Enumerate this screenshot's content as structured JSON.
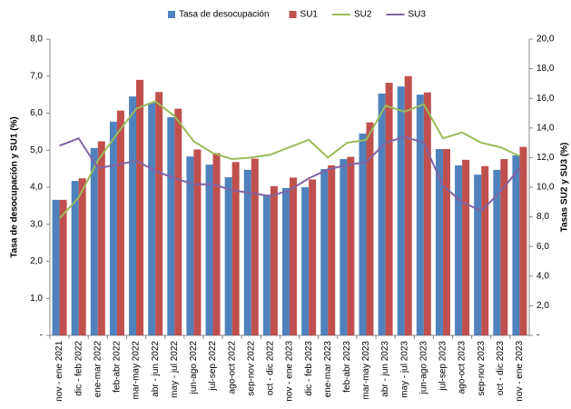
{
  "chart_data": {
    "type": "bar-line",
    "legend_position": "top",
    "ylabel": "Tasa de desocupación y SU1 (%)",
    "y2label": "Tasas SU2 y SU3 (%)",
    "categories": [
      "nov - ene 2021",
      "dic - feb 2022",
      "ene-mar 2022",
      "feb-abr 2022",
      "mar-may 2022",
      "abr - jun 2022",
      "may - jul 2022",
      "jun-ago 2022",
      "jul-sep 2022",
      "ago-oct 2022",
      "sep-nov 2022",
      "oct - dic 2022",
      "nov - ene 2023",
      "dic - feb 2023",
      "ene-mar 2023",
      "feb-abr 2023",
      "mar-may 2023",
      "abr - jun 2023",
      "may - jul 2023",
      "jun-ago 2023",
      "jul-sep 2023",
      "ago-oct 2023",
      "sep-nov 2023",
      "oct - dic 2023",
      "nov - ene 2023"
    ],
    "series": [
      {
        "name": "Tasa de desocupación",
        "type": "bar",
        "color": "#4f81bd",
        "values": [
          3.66,
          4.17,
          5.06,
          5.77,
          6.45,
          6.28,
          5.89,
          4.83,
          4.61,
          4.27,
          4.47,
          3.8,
          3.98,
          4.0,
          4.49,
          4.76,
          5.45,
          6.53,
          6.72,
          6.5,
          5.03,
          4.59,
          4.34,
          4.47,
          4.86
        ]
      },
      {
        "name": "SU1",
        "type": "bar",
        "color": "#c0504d",
        "values": [
          3.66,
          4.24,
          5.24,
          6.07,
          6.9,
          6.57,
          6.12,
          5.02,
          4.92,
          4.68,
          4.77,
          4.03,
          4.26,
          4.21,
          4.59,
          4.82,
          5.75,
          6.82,
          7.0,
          6.56,
          5.03,
          4.74,
          4.57,
          4.76,
          5.09
        ]
      },
      {
        "name": "SU2",
        "type": "line",
        "axis": "y2",
        "color": "#9bbb59",
        "values": [
          7.9,
          9.3,
          11.8,
          13.6,
          15.3,
          15.8,
          14.8,
          13.1,
          12.3,
          11.9,
          12.0,
          12.2,
          12.7,
          13.2,
          12.0,
          13.0,
          13.2,
          15.5,
          15.1,
          15.6,
          13.3,
          13.7,
          13.0,
          12.7,
          12.1
        ]
      },
      {
        "name": "SU3",
        "type": "line",
        "axis": "y2",
        "color": "#8064a2",
        "values": [
          12.8,
          13.3,
          11.3,
          11.5,
          11.8,
          11.1,
          10.6,
          10.2,
          10.2,
          9.8,
          9.6,
          9.4,
          9.8,
          10.6,
          11.2,
          11.5,
          11.7,
          13.0,
          13.4,
          13.0,
          10.1,
          9.0,
          8.4,
          9.7,
          11.3
        ]
      }
    ],
    "ylim": [
      0,
      8
    ],
    "yticks": [
      {
        "value": 0,
        "label": "-"
      },
      {
        "value": 1,
        "label": "1,0"
      },
      {
        "value": 2,
        "label": "2,0"
      },
      {
        "value": 3,
        "label": "3,0"
      },
      {
        "value": 4,
        "label": "4,0"
      },
      {
        "value": 5,
        "label": "5,0"
      },
      {
        "value": 6,
        "label": "6,0"
      },
      {
        "value": 7,
        "label": "7,0"
      },
      {
        "value": 8,
        "label": "8,0"
      }
    ],
    "y2lim": [
      0,
      20
    ],
    "y2ticks": [
      {
        "value": 0,
        "label": "-"
      },
      {
        "value": 2,
        "label": "2,0"
      },
      {
        "value": 4,
        "label": "4,0"
      },
      {
        "value": 6,
        "label": "6,0"
      },
      {
        "value": 8,
        "label": "8,0"
      },
      {
        "value": 10,
        "label": "10,0"
      },
      {
        "value": 12,
        "label": "12,0"
      },
      {
        "value": 14,
        "label": "14,0"
      },
      {
        "value": 16,
        "label": "16,0"
      },
      {
        "value": 18,
        "label": "18,0"
      },
      {
        "value": 20,
        "label": "20,0"
      }
    ]
  }
}
